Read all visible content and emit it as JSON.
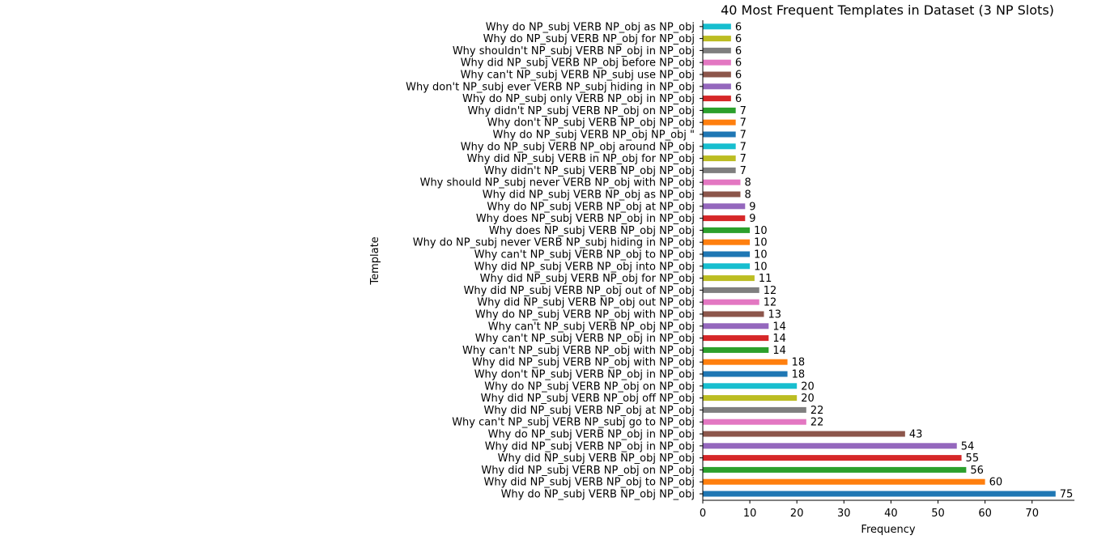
{
  "chart_data": {
    "type": "bar",
    "orientation": "horizontal",
    "title": "40 Most Frequent Templates in Dataset (3 NP Slots)",
    "xlabel": "Frequency",
    "ylabel": "Template",
    "xlim": [
      0,
      79
    ],
    "xticks": [
      0,
      10,
      20,
      30,
      40,
      50,
      60,
      70
    ],
    "grid": false,
    "legend": "none",
    "categories": [
      "Why do NP_subj VERB NP_obj NP_obj",
      "Why did NP_subj VERB NP_obj to NP_obj",
      "Why did NP_subj VERB NP_obj on NP_obj",
      "Why did NP_subj VERB NP_obj NP_obj",
      "Why did NP_subj VERB NP_obj in NP_obj",
      "Why do NP_subj VERB NP_obj in NP_obj",
      "Why can't NP_subj VERB NP_subj go to NP_obj",
      "Why did NP_subj VERB NP_obj at NP_obj",
      "Why did NP_subj VERB NP_obj off NP_obj",
      "Why do NP_subj VERB NP_obj on NP_obj",
      "Why don't NP_subj VERB NP_obj in NP_obj",
      "Why did NP_subj VERB NP_obj with NP_obj",
      "Why can't NP_subj VERB NP_obj with NP_obj",
      "Why can't NP_subj VERB NP_obj in NP_obj",
      "Why can't NP_subj VERB NP_obj NP_obj",
      "Why do NP_subj VERB NP_obj with NP_obj",
      "Why did NP_subj VERB NP_obj out NP_obj",
      "Why did NP_subj VERB NP_obj out of NP_obj",
      "Why did NP_subj VERB NP_obj for NP_obj",
      "Why did NP_subj VERB NP_obj into NP_obj",
      "Why can't NP_subj VERB NP_obj to NP_obj",
      "Why do NP_subj never VERB NP_subj hiding in NP_obj",
      "Why does NP_subj VERB NP_obj NP_obj",
      "Why does NP_subj VERB NP_obj in NP_obj",
      "Why do NP_subj VERB NP_obj at NP_obj",
      "Why did NP_subj VERB NP_obj as NP_obj",
      "Why should NP_subj never VERB NP_obj with NP_obj",
      "Why didn't NP_subj VERB NP_obj NP_obj",
      "Why did NP_subj VERB in NP_obj for NP_obj",
      "Why do NP_subj VERB NP_obj around NP_obj",
      "Why do NP_subj VERB NP_obj NP_obj \"",
      "Why don't NP_subj VERB NP_obj NP_obj",
      "Why didn't NP_subj VERB NP_obj on NP_obj",
      "Why do NP_subj only VERB NP_obj in NP_obj",
      "Why don't NP_subj ever VERB NP_subj hiding in NP_obj",
      "Why can't NP_subj VERB NP_subj use NP_obj",
      "Why did NP_subj VERB NP_obj before NP_obj",
      "Why shouldn't NP_subj VERB NP_obj in NP_obj",
      "Why do NP_subj VERB NP_obj for NP_obj",
      "Why do NP_subj VERB NP_obj as NP_obj"
    ],
    "values": [
      75,
      60,
      56,
      55,
      54,
      43,
      22,
      22,
      20,
      20,
      18,
      18,
      14,
      14,
      14,
      13,
      12,
      12,
      11,
      10,
      10,
      10,
      10,
      9,
      9,
      8,
      8,
      7,
      7,
      7,
      7,
      7,
      7,
      6,
      6,
      6,
      6,
      6,
      6,
      6
    ],
    "colors": [
      "#1f77b4",
      "#ff7f0e",
      "#2ca02c",
      "#d62728",
      "#9467bd",
      "#8c564b",
      "#e377c2",
      "#7f7f7f",
      "#bcbd22",
      "#17becf"
    ]
  }
}
